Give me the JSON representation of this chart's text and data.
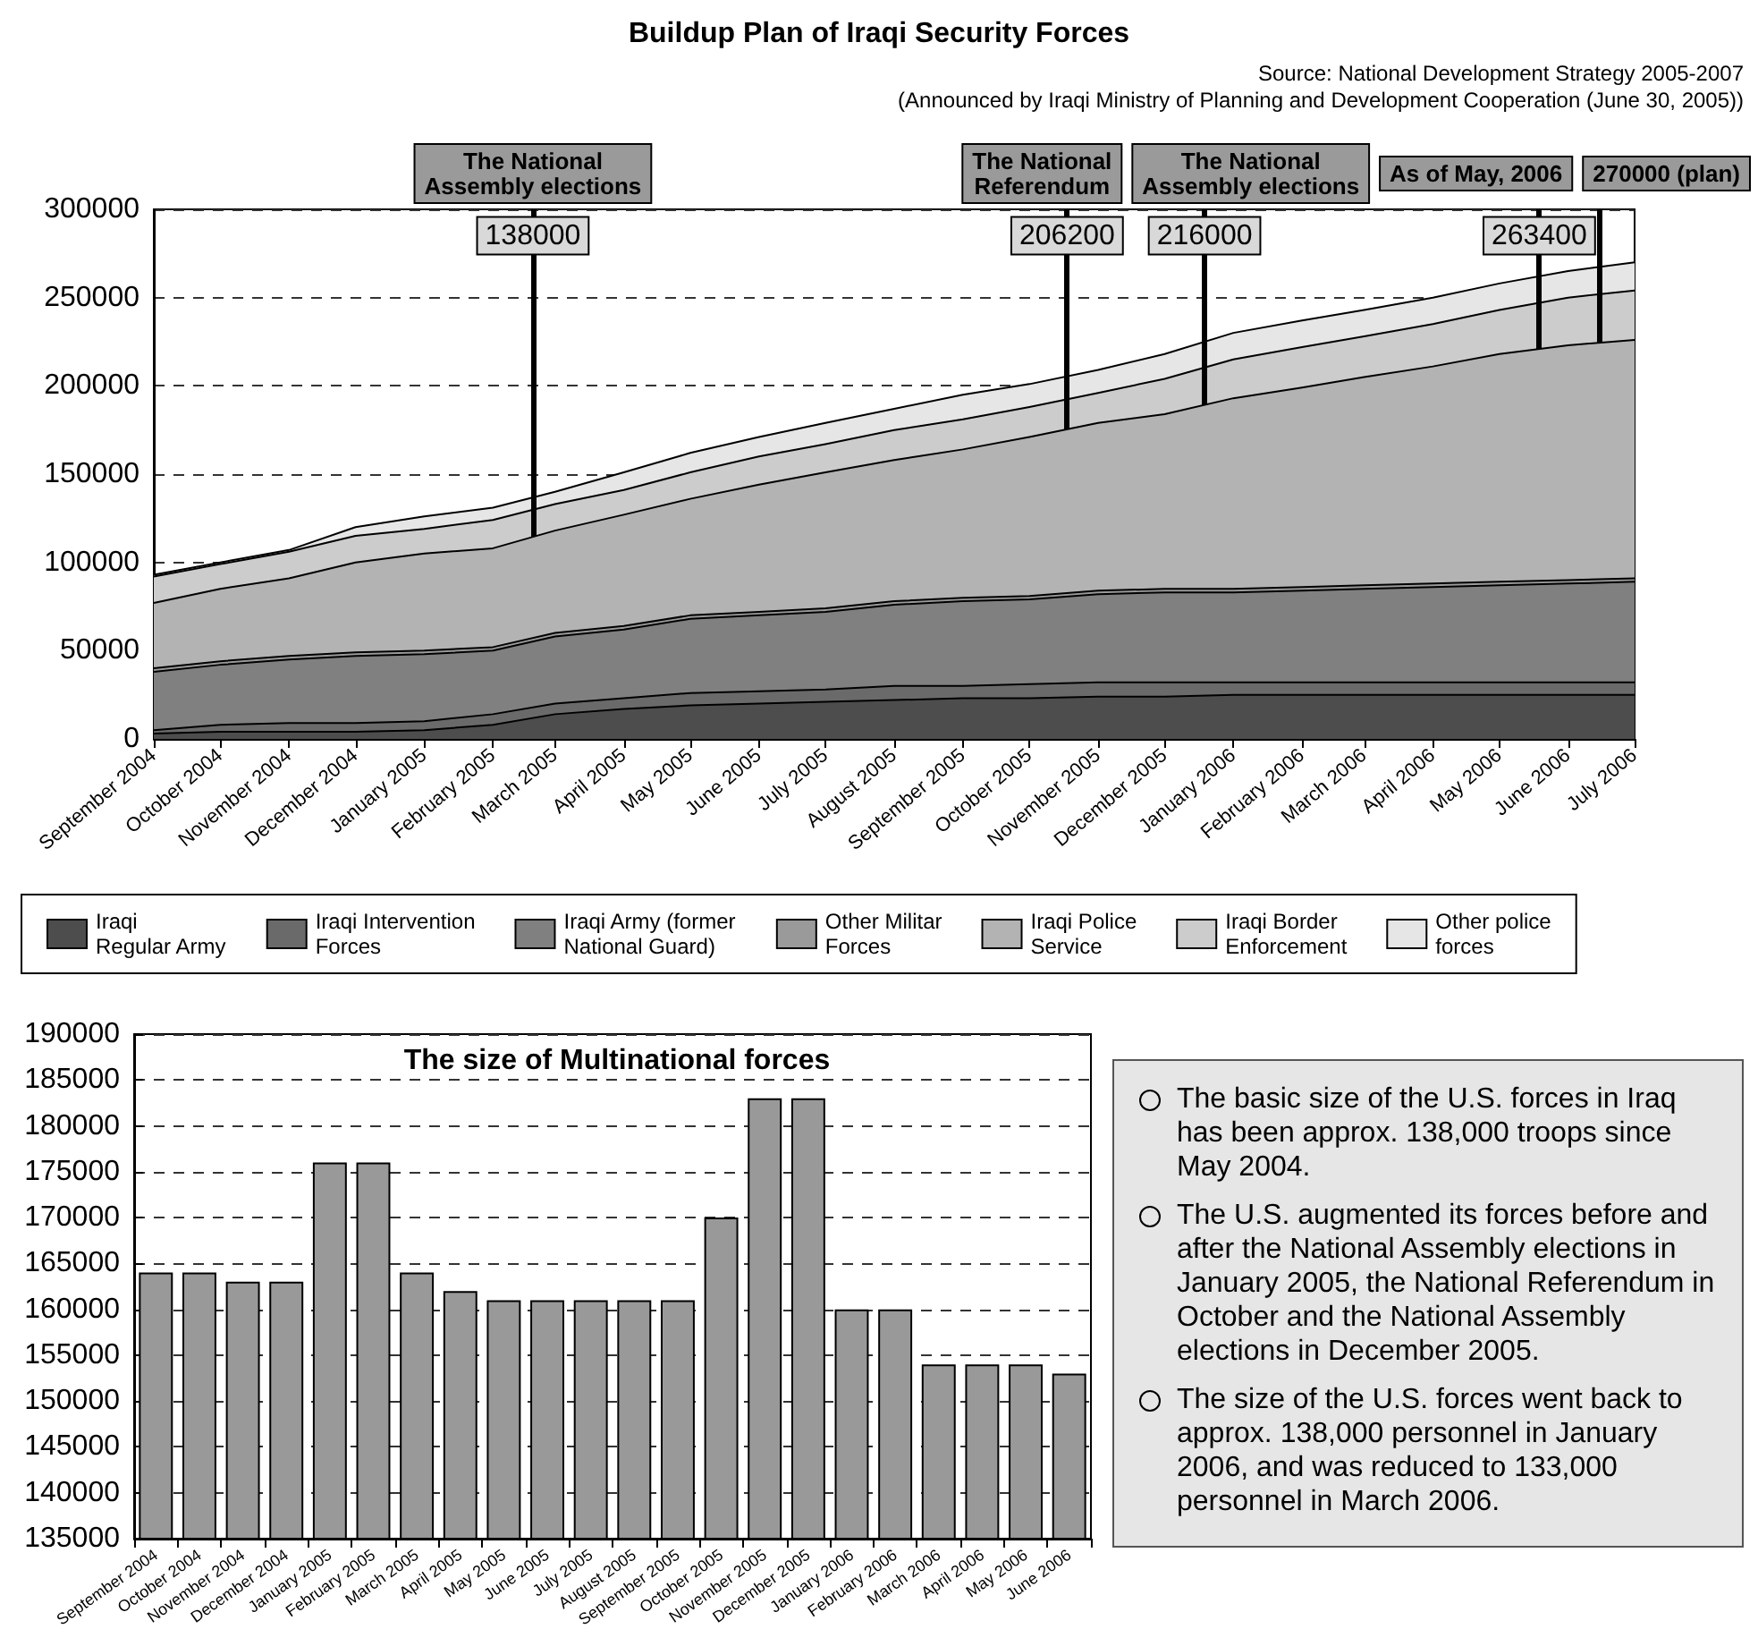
{
  "chart_data": [
    {
      "type": "area",
      "title": "Buildup Plan of Iraqi Security Forces",
      "annotations": [
        "Source: National Development Strategy 2005-2007",
        "(Announced by Iraqi Ministry of Planning and Development Cooperation (June 30, 2005))",
        {
          "text": "138000",
          "x": "2005-02-19",
          "y": 285000
        },
        {
          "text": "206200",
          "x": "2005-10-18",
          "y": 285000
        },
        {
          "text": "216000",
          "x": "2005-12-19",
          "y": 285000
        },
        {
          "text": "263400",
          "x": "2006-05-19",
          "y": 285000
        }
      ],
      "x": [
        "2004-09",
        "2004-10",
        "2004-11",
        "2004-12",
        "2005-01",
        "2005-02",
        "2005-03",
        "2005-04",
        "2005-05",
        "2005-06",
        "2005-07",
        "2005-08",
        "2005-09",
        "2005-10",
        "2005-11",
        "2005-12",
        "2006-01",
        "2006-02",
        "2006-03",
        "2006-04",
        "2006-05",
        "2006-06",
        "2006-07"
      ],
      "xlim": [
        "2004-09",
        "2006-07"
      ],
      "xticks": [
        {
          "value": "2004-09",
          "label": "September 2004"
        },
        {
          "value": "2004-10",
          "label": "October 2004"
        },
        {
          "value": "2004-11",
          "label": "November 2004"
        },
        {
          "value": "2004-12",
          "label": "December 2004"
        },
        {
          "value": "2005-01",
          "label": "January 2005"
        },
        {
          "value": "2005-02",
          "label": "February 2005"
        },
        {
          "value": "2005-03",
          "label": "March 2005"
        },
        {
          "value": "2005-04",
          "label": "April 2005"
        },
        {
          "value": "2005-05",
          "label": "May 2005"
        },
        {
          "value": "2005-06",
          "label": "June 2005"
        },
        {
          "value": "2005-07",
          "label": "July 2005"
        },
        {
          "value": "2005-08",
          "label": "August 2005"
        },
        {
          "value": "2005-09",
          "label": "September 2005"
        },
        {
          "value": "2005-10",
          "label": "October 2005"
        },
        {
          "value": "2005-11",
          "label": "November 2005"
        },
        {
          "value": "2005-12",
          "label": "December 2005"
        },
        {
          "value": "2006-01",
          "label": "January 2006"
        },
        {
          "value": "2006-02",
          "label": "February 2006"
        },
        {
          "value": "2006-03",
          "label": "March 2006"
        },
        {
          "value": "2006-04",
          "label": "April 2006"
        },
        {
          "value": "2006-05",
          "label": "May 2006"
        },
        {
          "value": "2006-06",
          "label": "June 2006"
        },
        {
          "value": "2006-07",
          "label": "July 2006"
        }
      ],
      "ylim": [
        0,
        300000
      ],
      "yticks": [
        0,
        50000,
        100000,
        150000,
        200000,
        250000,
        300000
      ],
      "stacked": true,
      "grid": "y",
      "legend": "bottom",
      "marker": "none",
      "series": [
        {
          "name": "Iraqi Regular Army",
          "color": "#4d4d4d",
          "values": [
            3000,
            4000,
            4000,
            4000,
            5000,
            8000,
            14000,
            17000,
            19000,
            20000,
            21000,
            22000,
            23000,
            23000,
            24000,
            24000,
            25000,
            25000,
            25000,
            25000,
            25000,
            25000,
            25000
          ]
        },
        {
          "name": "Iraqi Intervention Forces",
          "color": "#6a6a6a",
          "values": [
            2000,
            4000,
            5000,
            5000,
            5000,
            6000,
            6000,
            6000,
            7000,
            7000,
            7000,
            8000,
            7000,
            8000,
            8000,
            8000,
            7000,
            7000,
            7000,
            7000,
            7000,
            7000,
            7000
          ]
        },
        {
          "name": "Iraqi Army (former National Guard)",
          "color": "#808080",
          "values": [
            33000,
            34000,
            36000,
            38000,
            38000,
            36000,
            38000,
            39000,
            42000,
            43000,
            44000,
            46000,
            48000,
            48000,
            50000,
            51000,
            51000,
            52000,
            53000,
            54000,
            55000,
            56000,
            57000
          ]
        },
        {
          "name": "Other Militar Forces",
          "color": "#9a9a9a",
          "values": [
            2000,
            2000,
            2000,
            2000,
            2000,
            2000,
            2000,
            2000,
            2000,
            2000,
            2000,
            2000,
            2000,
            2000,
            2000,
            2000,
            2000,
            2000,
            2000,
            2000,
            2000,
            2000,
            2000
          ]
        },
        {
          "name": "Iraqi Police Service",
          "color": "#b3b3b3",
          "values": [
            37000,
            41000,
            44000,
            51000,
            55000,
            56000,
            58000,
            63000,
            66000,
            72000,
            77000,
            80000,
            84000,
            90000,
            95000,
            99000,
            108000,
            113000,
            118000,
            123000,
            129000,
            133000,
            135000
          ]
        },
        {
          "name": "Iraqi Border Enforcement",
          "color": "#cccccc",
          "values": [
            15000,
            14000,
            15000,
            15000,
            14000,
            16000,
            15000,
            14000,
            15000,
            16000,
            16000,
            17000,
            17000,
            17000,
            17000,
            20000,
            22000,
            23000,
            23000,
            24000,
            25000,
            27000,
            28000
          ]
        },
        {
          "name": "Other police forces",
          "color": "#e6e6e6",
          "values": [
            1000,
            1000,
            1000,
            5000,
            7000,
            7000,
            7000,
            10000,
            11000,
            11000,
            12000,
            12000,
            14000,
            13000,
            13000,
            14000,
            15000,
            15000,
            15000,
            15000,
            15000,
            15000,
            16000
          ]
        }
      ],
      "ref_lines": [
        {
          "axis": "x",
          "value": "2005-02-19",
          "label": "The National Assembly elections",
          "color": "#000000"
        },
        {
          "axis": "x",
          "value": "2005-10-18",
          "label": "The National Referendum",
          "color": "#000000"
        },
        {
          "axis": "x",
          "value": "2005-12-19",
          "label": "The National Assembly elections",
          "color": "#000000"
        },
        {
          "axis": "x",
          "value": "2006-05-19",
          "label": "As of May, 2006",
          "color": "#000000"
        },
        {
          "axis": "x",
          "value": "2006-06-15",
          "label": "270000 (plan)",
          "color": "#000000"
        }
      ]
    },
    {
      "type": "bar",
      "title": "The size of Multinational forces",
      "categories": [
        "September 2004",
        "October 2004",
        "November 2004",
        "December 2004",
        "January 2005",
        "February 2005",
        "March 2005",
        "April 2005",
        "May 2005",
        "June 2005",
        "July 2005",
        "August 2005",
        "September 2005",
        "October 2005",
        "November 2005",
        "December 2005",
        "January 2006",
        "February 2006",
        "March 2006",
        "April 2006",
        "May 2006",
        "June 2006"
      ],
      "values": [
        164000,
        164000,
        163000,
        163000,
        176000,
        176000,
        164000,
        162000,
        161000,
        161000,
        161000,
        161000,
        161000,
        170000,
        183000,
        183000,
        160000,
        160000,
        154000,
        154000,
        154000,
        153000
      ],
      "color": "#999999",
      "ylim": [
        135000,
        190000
      ],
      "yticks": [
        135000,
        140000,
        145000,
        150000,
        155000,
        160000,
        165000,
        170000,
        175000,
        180000,
        185000,
        190000
      ],
      "grid": "y"
    },
    {
      "type": "other",
      "annotations": [
        "The basic size of the U.S. forces in Iraq has been approx. 138,000 troops since May 2004.",
        "The U.S. augmented its forces before and after the National Assembly elections in January 2005, the National Referendum in October and the National Assembly elections in December 2005.",
        "The size of the U.S. forces went back to approx. 138,000 personnel in January 2006, and was reduced to 133,000 personnel in March 2006."
      ]
    }
  ]
}
